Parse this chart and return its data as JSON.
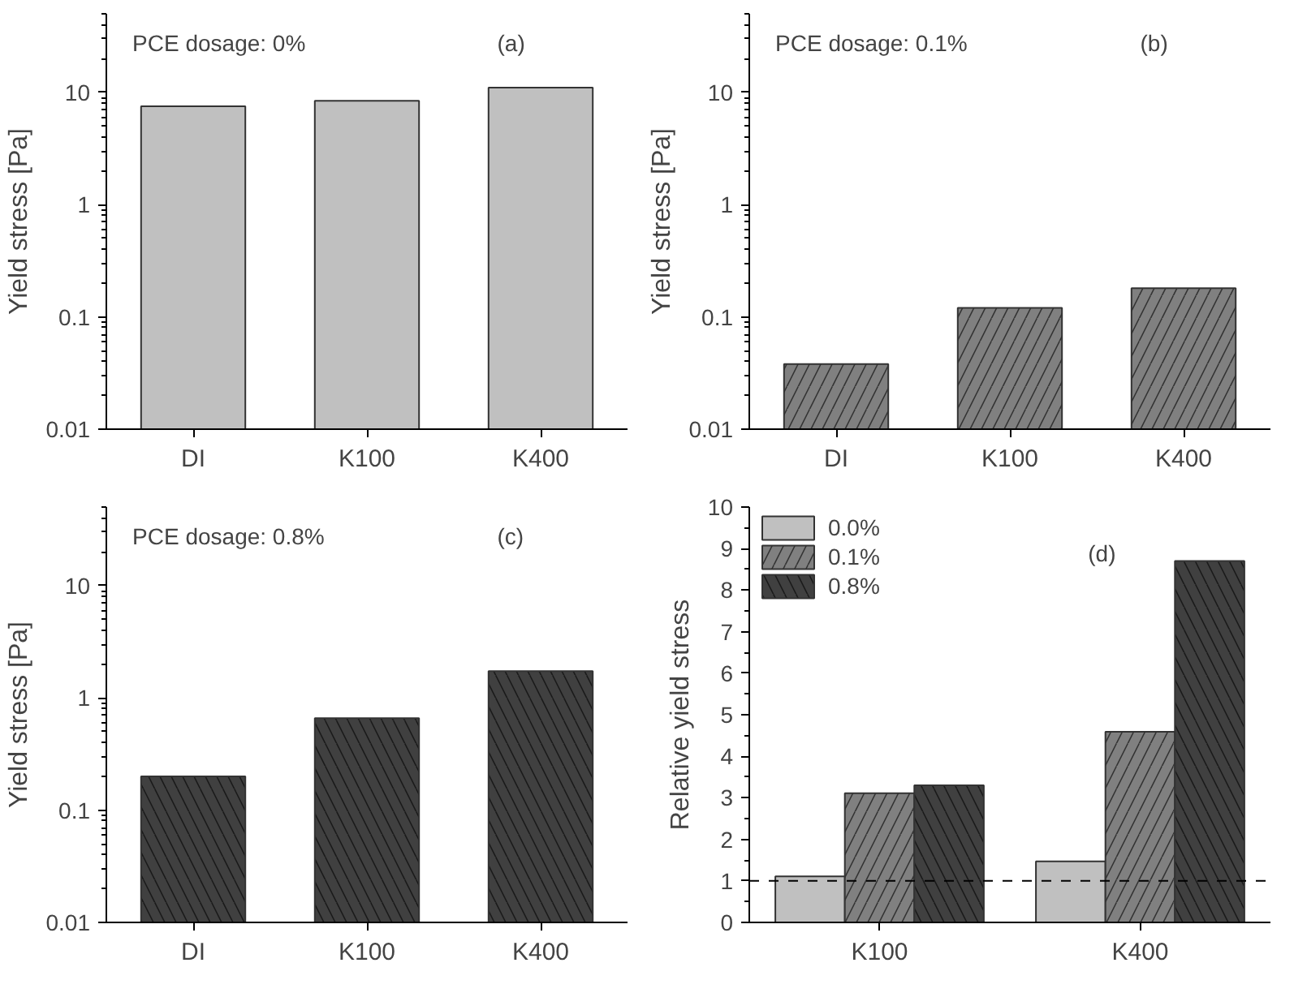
{
  "chart_data": [
    {
      "type": "bar",
      "categories": [
        "DI",
        "K100",
        "K400"
      ],
      "values": [
        7.5,
        8.4,
        11
      ],
      "color": "#c0c0c0",
      "ylabel": "Yield stress [Pa]",
      "log": true,
      "ylim": [
        0.01,
        50
      ],
      "yticks": [
        0.01,
        0.1,
        1,
        10
      ],
      "grid": false,
      "annotations": [
        "PCE dosage: 0%",
        "(a)"
      ]
    },
    {
      "type": "bar",
      "categories": [
        "DI",
        "K100",
        "K400"
      ],
      "values": [
        0.038,
        0.12,
        0.18
      ],
      "color": "#808080",
      "ylabel": "Yield stress [Pa]",
      "log": true,
      "ylim": [
        0.01,
        50
      ],
      "yticks": [
        0.01,
        0.1,
        1,
        10
      ],
      "grid": false,
      "annotations": [
        "PCE dosage: 0.1%",
        "(b)"
      ]
    },
    {
      "type": "bar",
      "categories": [
        "DI",
        "K100",
        "K400"
      ],
      "values": [
        0.2,
        0.66,
        1.73
      ],
      "color": "#404040",
      "ylabel": "Yield stress [Pa]",
      "log": true,
      "ylim": [
        0.01,
        50
      ],
      "yticks": [
        0.01,
        0.1,
        1,
        10
      ],
      "grid": false,
      "annotations": [
        "PCE dosage: 0.8%",
        "(c)"
      ]
    },
    {
      "type": "bar",
      "categories": [
        "K100",
        "K400"
      ],
      "series": [
        {
          "name": "0.0%",
          "color": "#c0c0c0",
          "values": [
            1.11,
            1.47
          ]
        },
        {
          "name": "0.1%",
          "color": "#808080",
          "values": [
            3.11,
            4.59
          ]
        },
        {
          "name": "0.8%",
          "color": "#404040",
          "values": [
            3.3,
            8.7
          ]
        }
      ],
      "ylabel": "Relative yield stress",
      "ylim": [
        0,
        10
      ],
      "yticks": [
        0,
        1,
        2,
        3,
        4,
        5,
        6,
        7,
        8,
        9,
        10
      ],
      "grid": false,
      "legend": "top left",
      "ref_lines": [
        {
          "axis": "y",
          "value": 1,
          "line_style": "dashed",
          "color": "#000000"
        }
      ],
      "annotations": [
        "(d)"
      ]
    }
  ]
}
